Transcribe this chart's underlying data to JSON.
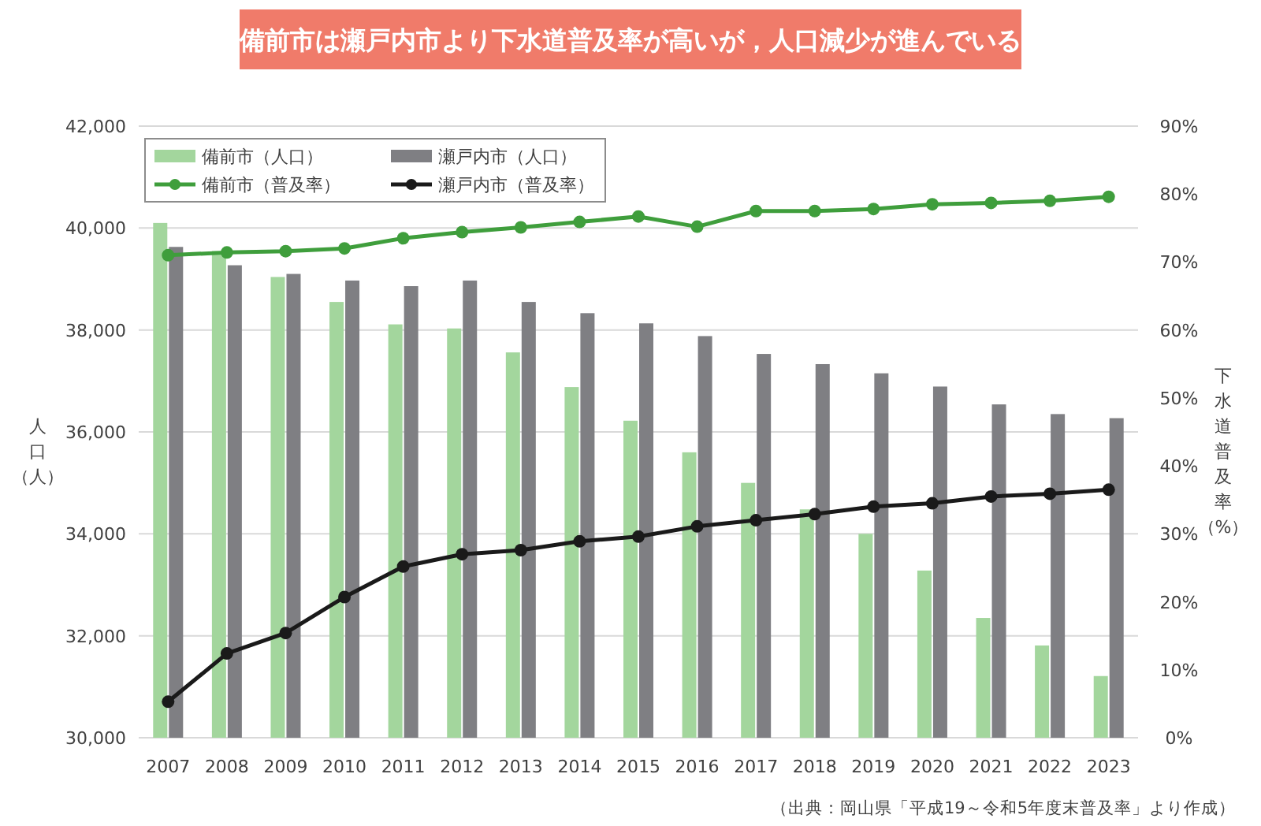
{
  "chart_data": {
    "type": "bar",
    "title": "備前市は瀬戸内市より下水道普及率が高いが，人口減少が進んでいる",
    "ylabel": "人口（人）",
    "y2label": "下水道普及率（%）",
    "annotations": [
      "（出典：岡山県「平成19～令和5年度末普及率」より作成）"
    ],
    "categories": [
      "2007",
      "2008",
      "2009",
      "2010",
      "2011",
      "2012",
      "2013",
      "2014",
      "2015",
      "2016",
      "2017",
      "2018",
      "2019",
      "2020",
      "2021",
      "2022",
      "2023"
    ],
    "series": [
      {
        "name": "備前市（人口）",
        "color": "#a3d69d",
        "values": [
          40100,
          39550,
          39040,
          38550,
          38110,
          38030,
          37560,
          36880,
          36220,
          35600,
          35000,
          34480,
          34000,
          33280,
          32350,
          31810,
          31210
        ]
      },
      {
        "name": "瀬戸内市（人口）",
        "color": "#7f7f83",
        "values": [
          39630,
          39270,
          39100,
          38970,
          38860,
          38970,
          38550,
          38330,
          38130,
          37880,
          37530,
          37330,
          37150,
          36890,
          36540,
          36350,
          36270
        ]
      },
      {
        "name": "備前市（普及率）",
        "type": "line",
        "axis": "y2",
        "color": "#3f9e3c",
        "values": [
          71.0,
          71.4,
          71.6,
          72.0,
          73.5,
          74.4,
          75.1,
          75.9,
          76.7,
          75.2,
          77.5,
          77.5,
          77.8,
          78.5,
          78.7,
          79.0,
          79.6
        ]
      },
      {
        "name": "瀬戸内市（普及率）",
        "type": "line",
        "axis": "y2",
        "color": "#1a1a1a",
        "values": [
          5.3,
          12.4,
          15.4,
          20.7,
          25.2,
          27.0,
          27.6,
          28.9,
          29.6,
          31.1,
          32.0,
          32.9,
          34.0,
          34.5,
          35.5,
          35.9,
          36.5
        ]
      }
    ],
    "ylim": [
      30000,
      42000
    ],
    "yticks": [
      {
        "value": 30000,
        "label": "30,000"
      },
      {
        "value": 32000,
        "label": "32,000"
      },
      {
        "value": 34000,
        "label": "34,000"
      },
      {
        "value": 36000,
        "label": "36,000"
      },
      {
        "value": 38000,
        "label": "38,000"
      },
      {
        "value": 40000,
        "label": "40,000"
      },
      {
        "value": 42000,
        "label": "42,000"
      }
    ],
    "y2lim": [
      0,
      90
    ],
    "y2ticks": [
      {
        "value": 0,
        "label": "0%"
      },
      {
        "value": 10,
        "label": "10%"
      },
      {
        "value": 20,
        "label": "20%"
      },
      {
        "value": 30,
        "label": "30%"
      },
      {
        "value": 40,
        "label": "40%"
      },
      {
        "value": 50,
        "label": "50%"
      },
      {
        "value": 60,
        "label": "60%"
      },
      {
        "value": 70,
        "label": "70%"
      },
      {
        "value": 80,
        "label": "80%"
      },
      {
        "value": 90,
        "label": "90%"
      }
    ],
    "grid": "y",
    "legend": "top left",
    "marker": "circle",
    "line_style": "solid"
  }
}
